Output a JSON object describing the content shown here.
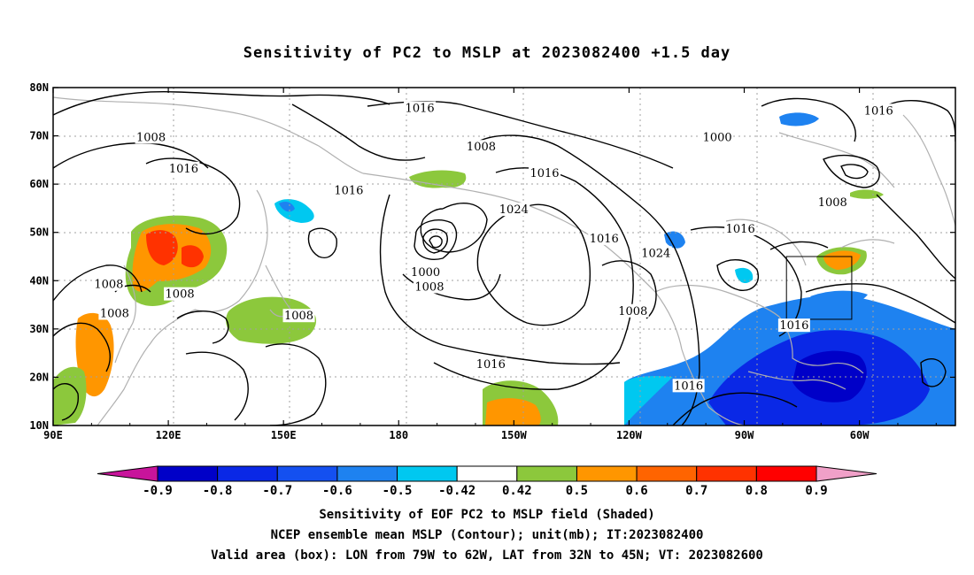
{
  "title": "Sensitivity of PC2 to MSLP at 2023082400 +1.5 day",
  "map": {
    "lon_labels": [
      "90E",
      "120E",
      "150E",
      "180",
      "150W",
      "120W",
      "90W",
      "60W"
    ],
    "lat_labels": [
      "10N",
      "20N",
      "30N",
      "40N",
      "50N",
      "60N",
      "70N",
      "80N"
    ],
    "contour_labels": [
      {
        "text": "1016",
        "lon": -174.5,
        "lat": 75.5
      },
      {
        "text": "1008",
        "lon": 115.5,
        "lat": 69.5
      },
      {
        "text": "1016",
        "lon": 124,
        "lat": 63
      },
      {
        "text": "1008",
        "lon": -158.5,
        "lat": 67.5
      },
      {
        "text": "1016",
        "lon": 167,
        "lat": 58.5
      },
      {
        "text": "1016",
        "lon": -142,
        "lat": 62
      },
      {
        "text": "1024",
        "lon": -150,
        "lat": 54.5
      },
      {
        "text": "1016",
        "lon": -126.5,
        "lat": 48.5
      },
      {
        "text": "1024",
        "lon": -113,
        "lat": 45.5
      },
      {
        "text": "1000",
        "lon": -173,
        "lat": 41.5
      },
      {
        "text": "1008",
        "lon": -172,
        "lat": 38.5
      },
      {
        "text": "1008",
        "lon": 104.5,
        "lat": 39
      },
      {
        "text": "1008",
        "lon": 123,
        "lat": 37
      },
      {
        "text": "1008",
        "lon": 106,
        "lat": 33
      },
      {
        "text": "1008",
        "lon": 154,
        "lat": 32.5
      },
      {
        "text": "1008",
        "lon": -119,
        "lat": 33.5
      },
      {
        "text": "1016",
        "lon": -156,
        "lat": 22.5
      },
      {
        "text": "1016",
        "lon": -104.5,
        "lat": 18
      },
      {
        "text": "1000",
        "lon": -97,
        "lat": 69.5
      },
      {
        "text": "1016",
        "lon": -55,
        "lat": 75
      },
      {
        "text": "1008",
        "lon": -67,
        "lat": 56
      },
      {
        "text": "1016",
        "lon": -91,
        "lat": 50.5
      },
      {
        "text": "1016",
        "lon": -77,
        "lat": 30.5
      }
    ],
    "valid_box": {
      "lon_from": -79,
      "lon_to": -62,
      "lat_from": 32,
      "lat_to": 45
    }
  },
  "colorbar": {
    "labels": [
      "-0.9",
      "-0.8",
      "-0.7",
      "-0.6",
      "-0.5",
      "-0.42",
      "0.42",
      "0.5",
      "0.6",
      "0.7",
      "0.8",
      "0.9"
    ],
    "colors": [
      "#0000c8",
      "#0a28e6",
      "#1450f0",
      "#1e82f0",
      "#00c8f0",
      "#ffffff",
      "#8cc83c",
      "#ff9600",
      "#ff6400",
      "#ff3200",
      "#ff0000"
    ],
    "low_end_color": "#c8149b",
    "high_end_color": "#f0a0c8"
  },
  "captions": {
    "line1": "Sensitivity of EOF PC2 to MSLP field (Shaded)",
    "line2": "NCEP ensemble mean MSLP (Contour); unit(mb); IT:2023082400",
    "line3": "Valid area (box): LON from 79W to 62W, LAT from 32N to 45N; VT: 2023082600"
  }
}
